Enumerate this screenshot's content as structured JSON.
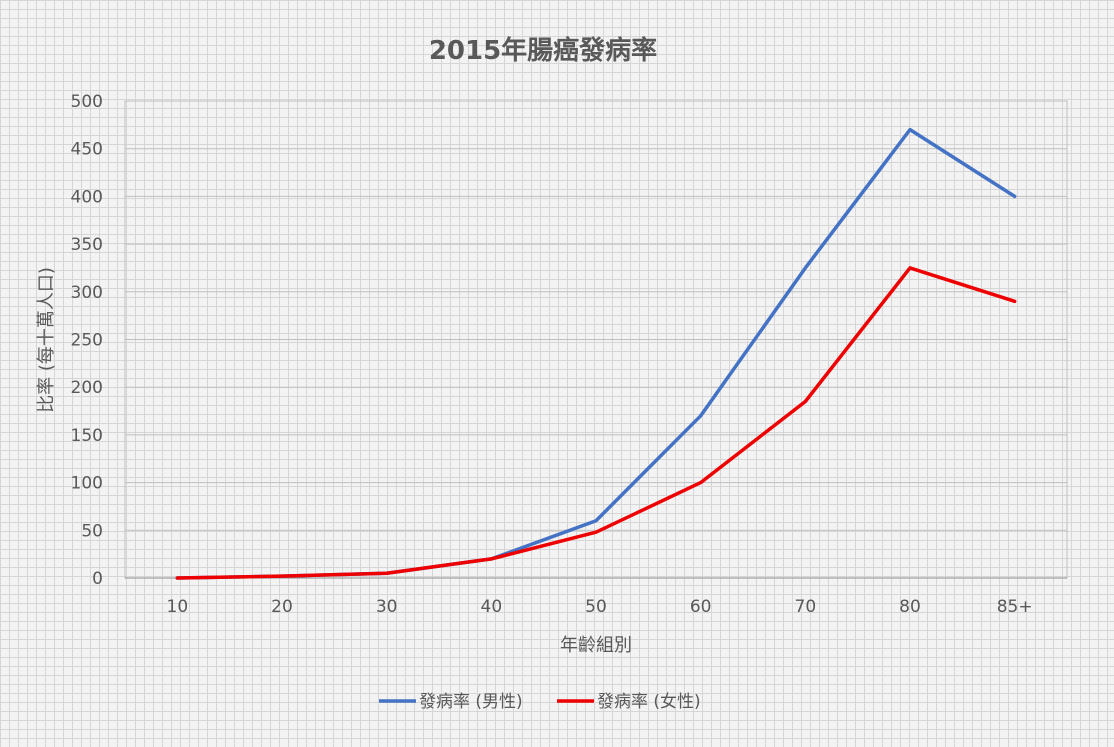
{
  "chart_data": {
    "type": "line",
    "title": "2015年腸癌發病率",
    "xlabel": "年齡組別",
    "ylabel": "比率 (每十萬人口)",
    "categories": [
      "10",
      "20",
      "30",
      "40",
      "50",
      "60",
      "70",
      "80",
      "85+"
    ],
    "ylim": [
      0,
      500
    ],
    "yticks": [
      "0",
      "50",
      "100",
      "150",
      "200",
      "250",
      "300",
      "350",
      "400",
      "450",
      "500"
    ],
    "grid": true,
    "legend_position": "bottom",
    "series": [
      {
        "name": "發病率 (男性)",
        "color": "#4472c4",
        "values": [
          0,
          2,
          5,
          20,
          60,
          170,
          325,
          470,
          400
        ]
      },
      {
        "name": "發病率 (女性)",
        "color": "#ee0000",
        "values": [
          0,
          2,
          5,
          20,
          48,
          100,
          185,
          325,
          290
        ]
      }
    ]
  }
}
